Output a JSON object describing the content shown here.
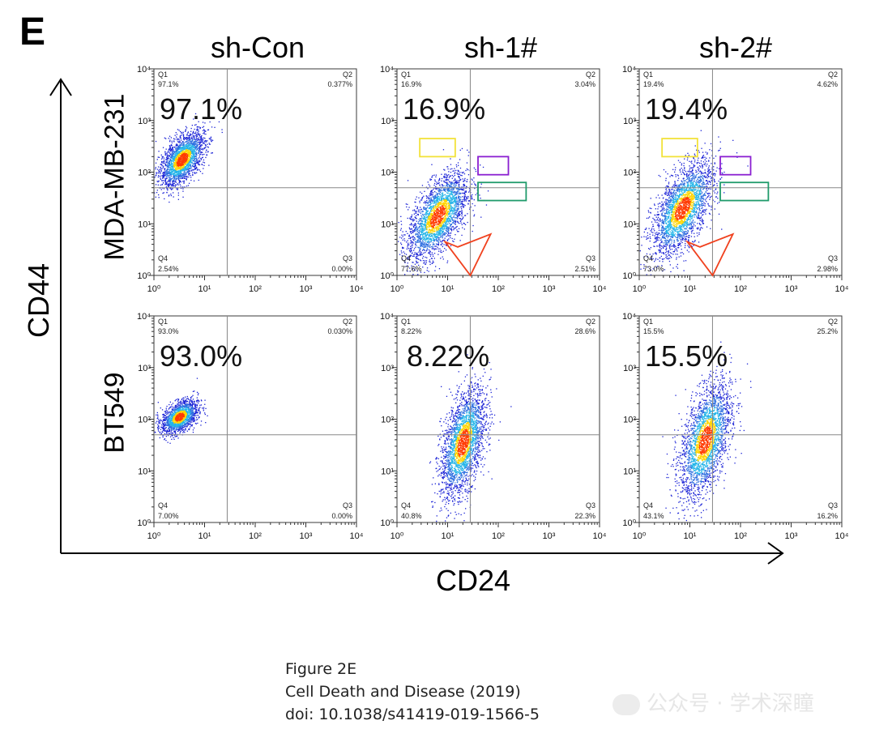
{
  "panel_letter": "E",
  "column_titles": [
    "sh-Con",
    "sh-1#",
    "sh-2#"
  ],
  "row_labels": [
    "MDA-MB-231",
    "BT549"
  ],
  "x_axis_title": "CD24",
  "y_axis_title": "CD44",
  "caption": {
    "line1": "Figure 2E",
    "line2": "Cell Death and Disease (2019)",
    "line3": "doi: 10.1038/s41419-019-1566-5"
  },
  "watermark": "公众号 · 学术深瞳",
  "chart_data": {
    "type": "scatter",
    "x_scale": "log",
    "y_scale": "log",
    "xlim": [
      1,
      10000
    ],
    "ylim": [
      1,
      10000
    ],
    "x_ticks": [
      "10⁰",
      "10¹",
      "10²",
      "10³",
      "10⁴"
    ],
    "y_ticks": [
      "10⁰",
      "10¹",
      "10²",
      "10³",
      "10⁴"
    ],
    "quadrant_names": [
      "Q1",
      "Q2",
      "Q3",
      "Q4"
    ],
    "colors": {
      "low_density": "#1a22d6",
      "mid_density": "#23b5e8",
      "high_density": "#ffd400",
      "peak_density": "#ff3a00",
      "gate_yellow": "#f2e23a",
      "gate_purple": "#8a1fd1",
      "gate_green": "#1f9b6b",
      "gate_red": "#f0411e"
    },
    "panels": [
      {
        "row": "MDA-MB-231",
        "column": "sh-Con",
        "big_label": "97.1%",
        "quadrants": {
          "Q1": "97.1%",
          "Q2": "0.377%",
          "Q3": "0.00%",
          "Q4": "2.54%"
        },
        "gate_x": 28,
        "gate_y": 50,
        "gates": []
      },
      {
        "row": "MDA-MB-231",
        "column": "sh-1#",
        "big_label": "16.9%",
        "quadrants": {
          "Q1": "16.9%",
          "Q2": "3.04%",
          "Q3": "2.51%",
          "Q4": "77.6%"
        },
        "gate_x": 28,
        "gate_y": 50,
        "gates": [
          "yellow",
          "purple",
          "green",
          "red"
        ]
      },
      {
        "row": "MDA-MB-231",
        "column": "sh-2#",
        "big_label": "19.4%",
        "quadrants": {
          "Q1": "19.4%",
          "Q2": "4.62%",
          "Q3": "2.98%",
          "Q4": "73.0%"
        },
        "gate_x": 28,
        "gate_y": 50,
        "gates": [
          "yellow",
          "purple",
          "green",
          "red"
        ]
      },
      {
        "row": "BT549",
        "column": "sh-Con",
        "big_label": "93.0%",
        "quadrants": {
          "Q1": "93.0%",
          "Q2": "0.030%",
          "Q3": "0.00%",
          "Q4": "7.00%"
        },
        "gate_x": 28,
        "gate_y": 50,
        "gates": []
      },
      {
        "row": "BT549",
        "column": "sh-1#",
        "big_label": "8.22%",
        "quadrants": {
          "Q1": "8.22%",
          "Q2": "28.6%",
          "Q3": "22.3%",
          "Q4": "40.8%"
        },
        "gate_x": 28,
        "gate_y": 50,
        "gates": []
      },
      {
        "row": "BT549",
        "column": "sh-2#",
        "big_label": "15.5%",
        "quadrants": {
          "Q1": "15.5%",
          "Q2": "25.2%",
          "Q3": "16.2%",
          "Q4": "43.1%"
        },
        "gate_x": 28,
        "gate_y": 50,
        "gates": []
      }
    ]
  }
}
